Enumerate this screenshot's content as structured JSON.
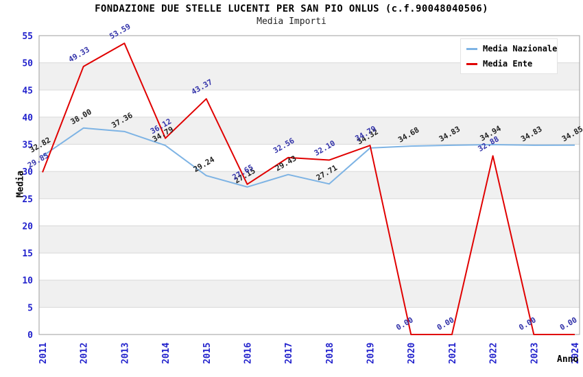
{
  "chart_data": {
    "type": "line",
    "title": "FONDAZIONE DUE STELLE LUCENTI PER SAN PIO ONLUS (c.f.90048040506)",
    "subtitle": "Media Importi",
    "xlabel": "Anno",
    "ylabel": "Media",
    "categories": [
      "2011",
      "2012",
      "2013",
      "2014",
      "2015",
      "2016",
      "2017",
      "2018",
      "2019",
      "2020",
      "2021",
      "2022",
      "2023",
      "2024"
    ],
    "ylim": [
      0,
      55
    ],
    "ytick_step": 5,
    "grid": true,
    "alternating_bands": true,
    "legend_position": "top-right",
    "series": [
      {
        "name": "Media Nazionale",
        "line_color": "#7db3e4",
        "label_color": "#222222",
        "values": [
          32.82,
          38.0,
          37.36,
          34.79,
          29.24,
          27.15,
          29.43,
          27.71,
          34.32,
          34.68,
          34.83,
          34.94,
          34.83,
          34.85
        ]
      },
      {
        "name": "Media Ente",
        "line_color": "#e00000",
        "label_color": "#3434aa",
        "values": [
          29.85,
          49.33,
          53.59,
          36.12,
          43.37,
          27.65,
          32.56,
          32.1,
          34.79,
          0.0,
          0.0,
          32.88,
          0.0,
          0.0
        ]
      }
    ]
  },
  "colors": {
    "tick_label": "#2222cc",
    "band": "#f0f0f0",
    "gridline": "#d8d8d8",
    "plot_border": "#9e9e9e",
    "title": "#000000"
  }
}
